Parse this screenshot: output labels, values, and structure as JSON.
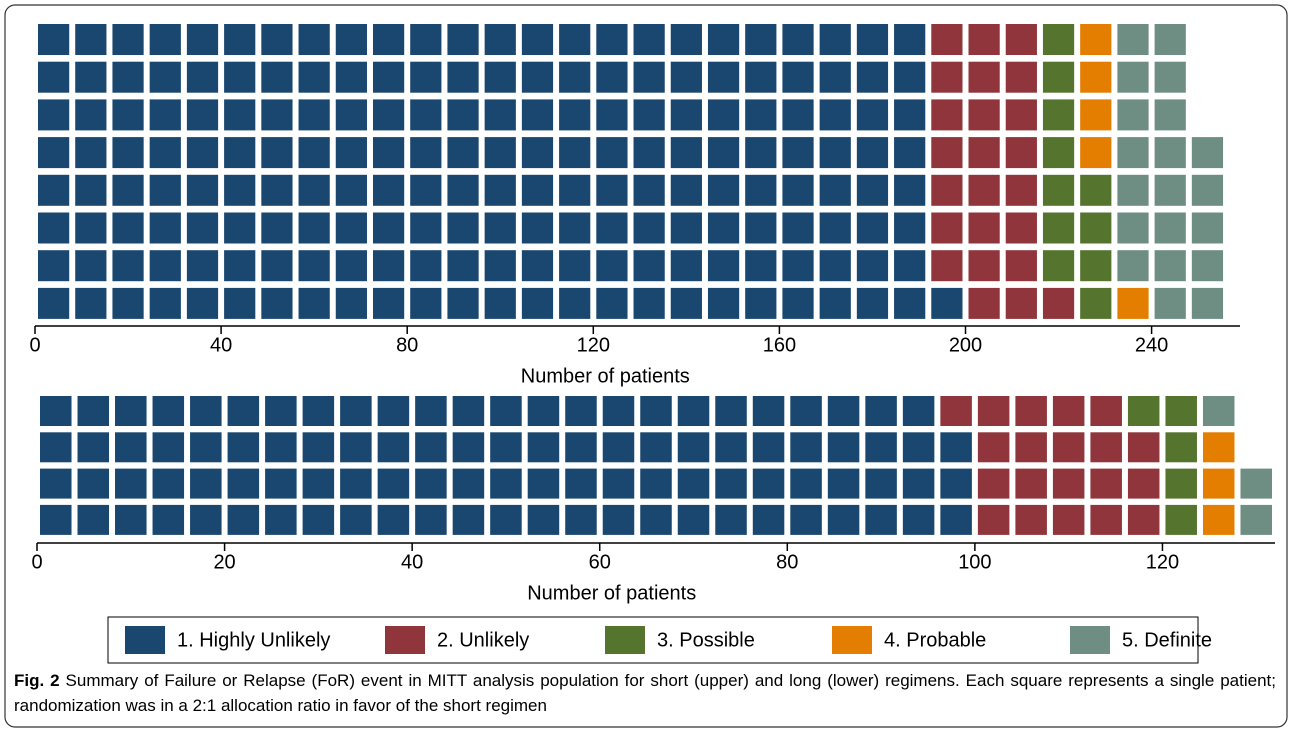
{
  "chart_data": [
    {
      "type": "waffle",
      "rows": 8,
      "categories": [
        "1. Highly Unlikely",
        "2. Unlikely",
        "3. Possible",
        "4. Probable",
        "5. Definite"
      ],
      "values": [
        193,
        24,
        11,
        5,
        20
      ],
      "colors": [
        "#1a476f",
        "#90353b",
        "#55752f",
        "#e37e00",
        "#6e8e84"
      ],
      "xlim": [
        0,
        259
      ],
      "xticks": [
        0,
        40,
        80,
        120,
        160,
        200,
        240
      ],
      "xlabel": "Number of patients",
      "legend": "bottom"
    },
    {
      "type": "waffle",
      "rows": 4,
      "values": [
        99,
        20,
        5,
        3,
        3
      ],
      "xlim": [
        0,
        132
      ],
      "xticks": [
        0,
        20,
        40,
        60,
        80,
        100,
        120
      ],
      "xlabel": "Number of patients"
    }
  ],
  "caption": {
    "label": "Fig. 2",
    "text": "Summary of Failure or Relapse (FoR) event in MITT analysis population for short (upper) and long (lower) regimens. Each square represents a single patient; randomization was in a 2:1 allocation ratio in favor of the short regimen"
  }
}
